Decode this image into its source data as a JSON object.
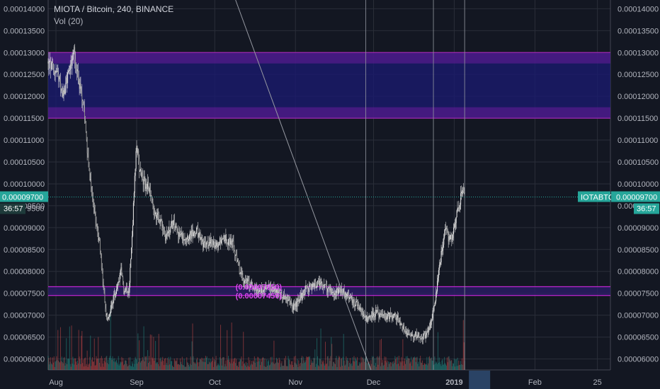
{
  "chart_data": {
    "type": "candlestick",
    "title": "MIOTA / Bitcoin, 240, BINANCE",
    "indicator": "Vol (20)",
    "symbol": "IOTABTC",
    "last_price": "0.00009700",
    "countdown": "36:57",
    "left_partial_tick": "0.00009500",
    "y_ticks": [
      "0.00014000",
      "0.00013500",
      "0.00013000",
      "0.00012500",
      "0.00012000",
      "0.00011500",
      "0.00011000",
      "0.00010500",
      "0.00010000",
      "0.00009500",
      "0.00009000",
      "0.00008500",
      "0.00008000",
      "0.00007500",
      "0.00007000",
      "0.00006500",
      "0.00006000"
    ],
    "ylim": [
      5.75e-05,
      0.000142
    ],
    "x_ticks": [
      "Aug",
      "Sep",
      "Oct",
      "Nov",
      "Dec",
      "2019",
      "Feb",
      "25"
    ],
    "x_tick_days": [
      0,
      31,
      61,
      92,
      122,
      153,
      184,
      208
    ],
    "xlim_days": [
      -3,
      213
    ],
    "last_bar_day": 157,
    "zones": [
      {
        "name": "resistance-zone",
        "bottom": 0.000115,
        "top": 0.00013,
        "inner_bottom": 0.0001175,
        "inner_top": 0.0001275,
        "fill": "#1a1a6e",
        "edge": "#9c27b0"
      },
      {
        "name": "support-zone",
        "bottom": 7.45e-05,
        "top": 7.65e-05,
        "fill": "#2a1d66",
        "edge": "#c026d3"
      }
    ],
    "fib_labels": [
      "(0.00007650)",
      "(0.00007450)"
    ],
    "fib_label_day": 69,
    "vertical_lines_days": [
      119,
      145,
      157
    ],
    "diagonal_line": {
      "from": [
        69,
        0.000142
      ],
      "to": [
        121,
        5.75e-05
      ]
    },
    "price_path": [
      [
        -3,
        0.0001275
      ],
      [
        0,
        0.0001255
      ],
      [
        3,
        0.00012
      ],
      [
        5,
        0.000126
      ],
      [
        7,
        0.00013
      ],
      [
        9,
        0.0001225
      ],
      [
        11,
        0.000115
      ],
      [
        13,
        0.000101
      ],
      [
        15,
        9.3e-05
      ],
      [
        17,
        8.5e-05
      ],
      [
        18,
        7.8e-05
      ],
      [
        19,
        7.1e-05
      ],
      [
        20,
        6.9e-05
      ],
      [
        21,
        7.2e-05
      ],
      [
        23,
        7.5e-05
      ],
      [
        25,
        8e-05
      ],
      [
        26,
        7.6e-05
      ],
      [
        28,
        7.6e-05
      ],
      [
        29,
        8.5e-05
      ],
      [
        30,
        9.8e-05
      ],
      [
        31,
        0.000109
      ],
      [
        32,
        0.000104
      ],
      [
        34,
        0.0001
      ],
      [
        36,
        9.9e-05
      ],
      [
        38,
        9.3e-05
      ],
      [
        40,
        9.2e-05
      ],
      [
        42,
        8.8e-05
      ],
      [
        45,
        9.1e-05
      ],
      [
        48,
        8.8e-05
      ],
      [
        51,
        8.8e-05
      ],
      [
        54,
        8.9e-05
      ],
      [
        57,
        8.6e-05
      ],
      [
        60,
        8.65e-05
      ],
      [
        62,
        8.6e-05
      ],
      [
        64,
        8.8e-05
      ],
      [
        66,
        8.7e-05
      ],
      [
        68,
        8.6e-05
      ],
      [
        70,
        8.1e-05
      ],
      [
        72,
        7.8e-05
      ],
      [
        75,
        7.7e-05
      ],
      [
        78,
        7.55e-05
      ],
      [
        81,
        7.65e-05
      ],
      [
        84,
        7.6e-05
      ],
      [
        87,
        7.45e-05
      ],
      [
        89,
        7.35e-05
      ],
      [
        91,
        7.2e-05
      ],
      [
        93,
        7.3e-05
      ],
      [
        96,
        7.6e-05
      ],
      [
        99,
        7.65e-05
      ],
      [
        101,
        7.75e-05
      ],
      [
        104,
        7.6e-05
      ],
      [
        107,
        7.5e-05
      ],
      [
        110,
        7.55e-05
      ],
      [
        113,
        7.4e-05
      ],
      [
        116,
        7.2e-05
      ],
      [
        119,
        6.9e-05
      ],
      [
        121,
        7e-05
      ],
      [
        123,
        7.05e-05
      ],
      [
        126,
        6.95e-05
      ],
      [
        129,
        7e-05
      ],
      [
        131,
        6.95e-05
      ],
      [
        133,
        6.75e-05
      ],
      [
        135,
        6.6e-05
      ],
      [
        137,
        6.55e-05
      ],
      [
        139,
        6.55e-05
      ],
      [
        141,
        6.5e-05
      ],
      [
        143,
        6.6e-05
      ],
      [
        145,
        7.1e-05
      ],
      [
        146,
        7.5e-05
      ],
      [
        147,
        8e-05
      ],
      [
        148,
        8.4e-05
      ],
      [
        149,
        8.8e-05
      ],
      [
        150,
        9e-05
      ],
      [
        151,
        8.7e-05
      ],
      [
        152,
        8.8e-05
      ],
      [
        153,
        9e-05
      ],
      [
        154,
        9.3e-05
      ],
      [
        155,
        9.5e-05
      ],
      [
        156,
        9.85e-05
      ],
      [
        157,
        9.7e-05
      ]
    ],
    "colors": {
      "background": "#131722",
      "grid": "#2a2e39",
      "up": "#26a69a",
      "down": "#ef5350",
      "candle": "#d6d6d6",
      "axis_text": "#b2b5be",
      "price_tag": "#26a69a",
      "crosshair": "#787b86",
      "highlight": "#2a4365"
    }
  }
}
